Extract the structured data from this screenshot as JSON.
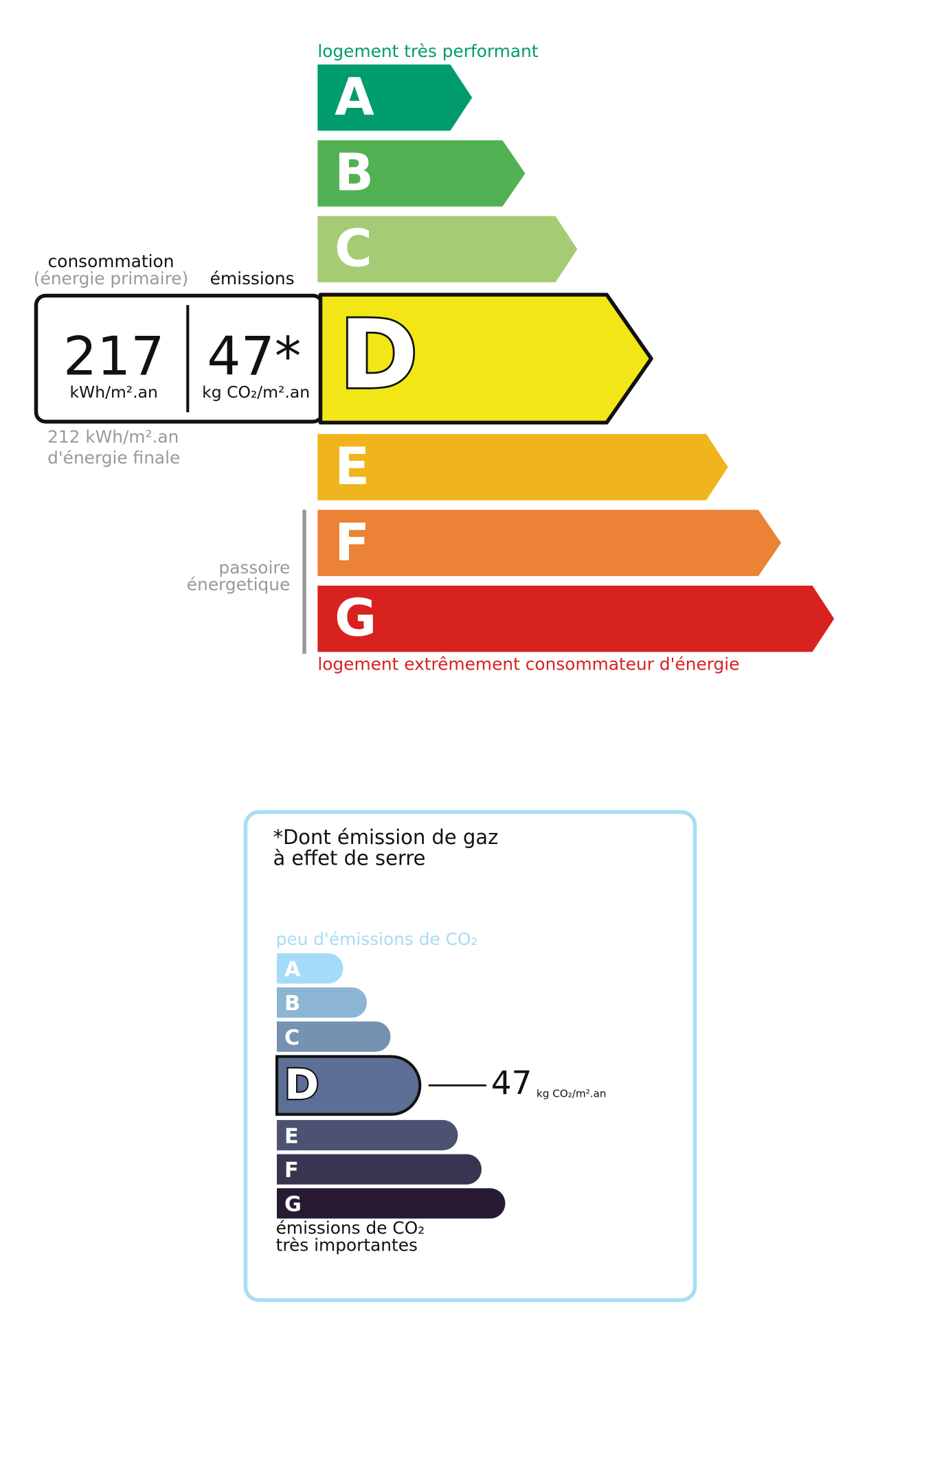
{
  "energy": {
    "top_label": "logement très performant",
    "bottom_label": "logement extrêmement consommateur d'énergie",
    "classes": [
      "A",
      "B",
      "C",
      "D",
      "E",
      "F",
      "G"
    ],
    "colors": [
      "#009c6d",
      "#52b153",
      "#a5cc74",
      "#f2e617",
      "#f0b41c",
      "#eb8235",
      "#d7221f"
    ],
    "rating": "D",
    "consumption": {
      "heading": "consommation",
      "subheading": "(énergie primaire)",
      "value": "217",
      "unit": "kWh/m².an"
    },
    "emissions": {
      "heading": "émissions",
      "value": "47*",
      "unit": "kg CO₂/m².an"
    },
    "final_energy": [
      "212 kWh/m².an",
      "d'énergie finale"
    ],
    "passoire": [
      "passoire",
      "énergetique"
    ]
  },
  "ghg": {
    "title": [
      "*Dont émission de gaz",
      "à effet de serre"
    ],
    "top_label": "peu d'émissions de CO₂",
    "classes": [
      "A",
      "B",
      "C",
      "D",
      "E",
      "F",
      "G"
    ],
    "colors": [
      "#a4dbf8",
      "#8cb4d3",
      "#7692b1",
      "#5d6f94",
      "#4d5272",
      "#393550",
      "#291a33"
    ],
    "rating": "D",
    "value": "47",
    "unit": "kg CO₂/m².an",
    "bottom_label": [
      "émissions de CO₂",
      "très importantes"
    ]
  }
}
